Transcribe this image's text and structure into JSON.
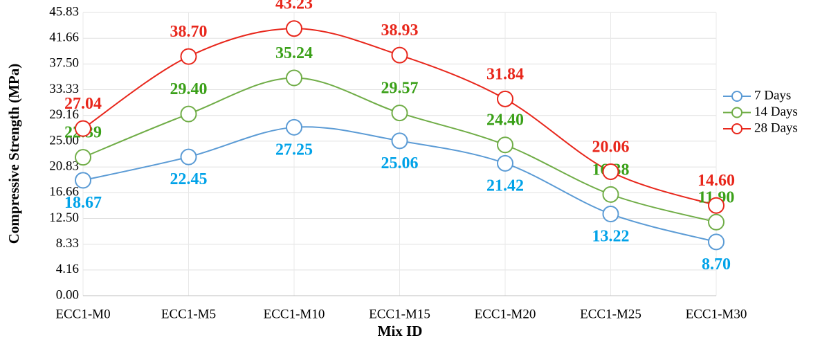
{
  "chart_data": {
    "type": "line",
    "xlabel": "Mix ID",
    "ylabel": "Compressive Strength (MPa)",
    "categories": [
      "ECC1-M0",
      "ECC1-M5",
      "ECC1-M10",
      "ECC1-M15",
      "ECC1-M20",
      "ECC1-M25",
      "ECC1-M30"
    ],
    "series": [
      {
        "name": "7 Days",
        "color": "#5b9bd5",
        "label_color": "#00a2e8",
        "values": [
          18.67,
          22.45,
          27.25,
          25.06,
          21.42,
          13.22,
          8.7
        ],
        "value_labels": [
          "18.67",
          "22.45",
          "27.25",
          "25.06",
          "21.42",
          "13.22",
          "8.70"
        ]
      },
      {
        "name": "14 Days",
        "color": "#70ad47",
        "label_color": "#3aa018",
        "values": [
          22.39,
          29.4,
          35.24,
          29.57,
          24.4,
          16.38,
          11.9
        ],
        "value_labels": [
          "22.39",
          "29.40",
          "35.24",
          "29.57",
          "24.40",
          "16.38",
          "11.90"
        ]
      },
      {
        "name": "28 Days",
        "color": "#e8271c",
        "label_color": "#e8271c",
        "values": [
          27.04,
          38.7,
          43.23,
          38.93,
          31.84,
          20.06,
          14.6
        ],
        "value_labels": [
          "27.04",
          "38.70",
          "43.23",
          "38.93",
          "31.84",
          "20.06",
          "14.60"
        ]
      }
    ],
    "ylim": [
      0,
      45.83
    ],
    "yticks": [
      {
        "value": 0,
        "label": "0.00"
      },
      {
        "value": 4.16,
        "label": "4.16"
      },
      {
        "value": 8.33,
        "label": "8.33"
      },
      {
        "value": 12.5,
        "label": "12.50"
      },
      {
        "value": 16.66,
        "label": "16.66"
      },
      {
        "value": 20.83,
        "label": "20.83"
      },
      {
        "value": 25,
        "label": "25.00"
      },
      {
        "value": 29.16,
        "label": "29.16"
      },
      {
        "value": 33.33,
        "label": "33.33"
      },
      {
        "value": 37.5,
        "label": "37.50"
      },
      {
        "value": 41.66,
        "label": "41.66"
      },
      {
        "value": 45.83,
        "label": "45.83"
      }
    ],
    "grid": true,
    "legend": "right"
  }
}
